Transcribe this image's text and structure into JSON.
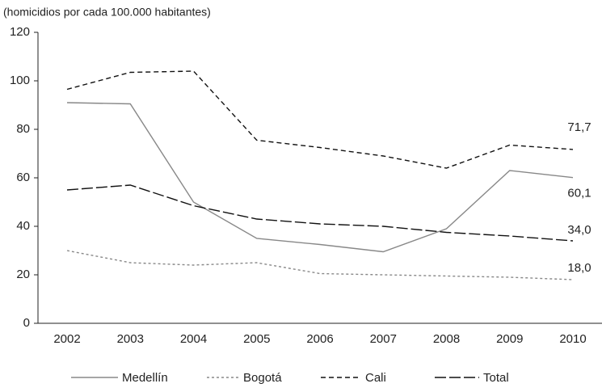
{
  "chart_data": {
    "type": "line",
    "y_label": "(homicidios por cada 100.000 habitantes)",
    "categories": [
      "2002",
      "2003",
      "2004",
      "2005",
      "2006",
      "2007",
      "2008",
      "2009",
      "2010"
    ],
    "ylim": [
      0,
      120
    ],
    "yticks": [
      0,
      20,
      40,
      60,
      80,
      100,
      120
    ],
    "grid": false,
    "series": [
      {
        "name": "Medellín",
        "color": "#888888",
        "dash": "solid",
        "values": [
          91,
          90.5,
          50,
          35,
          32.5,
          29.5,
          39,
          63,
          60.1
        ],
        "value_labels": [
          null,
          null,
          null,
          null,
          null,
          null,
          null,
          null,
          "60,1"
        ]
      },
      {
        "name": "Bogotá",
        "color": "#888888",
        "dash": "dotted",
        "values": [
          30,
          25,
          24,
          25,
          20.5,
          20,
          19.5,
          19,
          18.0
        ],
        "value_labels": [
          null,
          null,
          null,
          null,
          null,
          null,
          null,
          null,
          "18,0"
        ]
      },
      {
        "name": "Cali",
        "color": "#111111",
        "dash": "dashed",
        "values": [
          96.5,
          103.5,
          104,
          75.5,
          72.5,
          69,
          64,
          73.5,
          71.7
        ],
        "value_labels": [
          null,
          null,
          null,
          null,
          null,
          null,
          null,
          null,
          "71,7"
        ]
      },
      {
        "name": "Total",
        "color": "#111111",
        "dash": "longdash",
        "values": [
          55,
          57,
          48.5,
          43,
          41,
          40,
          37.5,
          36,
          34.0
        ],
        "value_labels": [
          null,
          null,
          null,
          null,
          null,
          null,
          null,
          null,
          "34,0"
        ]
      }
    ]
  }
}
